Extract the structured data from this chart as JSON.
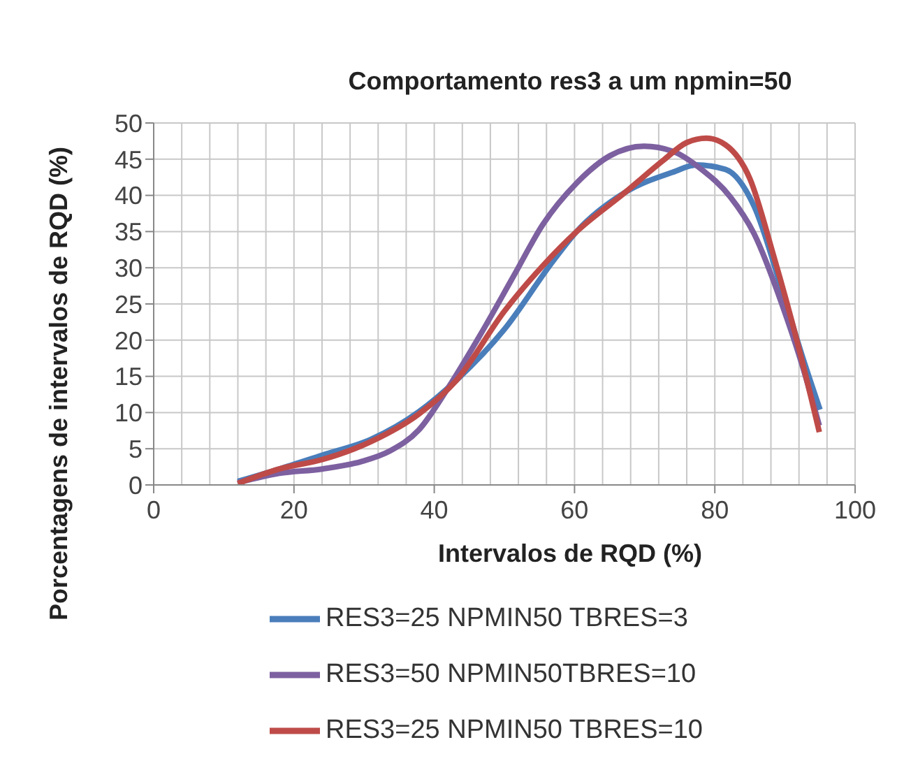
{
  "chart_data": {
    "type": "line",
    "title": "Comportamento res3 a um npmin=50",
    "xlabel": "Intervalos de RQD (%)",
    "ylabel": "Porcentagens de intervalos de RQD (%)",
    "xlim": [
      0,
      100
    ],
    "xticks": [
      0,
      {
        "value": 4,
        "label": null
      },
      {
        "value": 8,
        "label": null
      },
      {
        "value": 12,
        "label": null
      },
      {
        "value": 16,
        "label": null
      },
      20,
      {
        "value": 24,
        "label": null
      },
      {
        "value": 28,
        "label": null
      },
      {
        "value": 32,
        "label": null
      },
      {
        "value": 36,
        "label": null
      },
      40,
      {
        "value": 44,
        "label": null
      },
      {
        "value": 48,
        "label": null
      },
      {
        "value": 52,
        "label": null
      },
      {
        "value": 56,
        "label": null
      },
      60,
      {
        "value": 64,
        "label": null
      },
      {
        "value": 68,
        "label": null
      },
      {
        "value": 72,
        "label": null
      },
      {
        "value": 76,
        "label": null
      },
      80,
      {
        "value": 84,
        "label": null
      },
      {
        "value": 88,
        "label": null
      },
      {
        "value": 92,
        "label": null
      },
      {
        "value": 96,
        "label": null
      },
      100
    ],
    "ylim": [
      0,
      50
    ],
    "yticks": [
      0,
      5,
      10,
      15,
      20,
      25,
      30,
      35,
      40,
      45,
      50
    ],
    "grid": true,
    "legend": "bottom",
    "marker": "none",
    "line_style": "solid",
    "series": [
      {
        "name": "RES3=25 NPMIN50 TBRES=3",
        "color": "#4a7ebb",
        "x": [
          12,
          17.9,
          24,
          31,
          37.8,
          43.2,
          50,
          57,
          60.3,
          67.2,
          74,
          77.4,
          81.5,
          85.6,
          89.7,
          92.5,
          95
        ],
        "values": [
          0.5,
          2.2,
          4.1,
          6.3,
          10.1,
          14.5,
          21.5,
          31,
          35,
          40.4,
          43.2,
          44.2,
          43.6,
          38.5,
          26.5,
          17.7,
          10.4
        ]
      },
      {
        "name": "RES3=50 NPMIN50TBRES=10",
        "color": "#7d60a0",
        "x": [
          12,
          17.9,
          24,
          29.5,
          33.7,
          37.8,
          41.9,
          46.6,
          51.4,
          55.5,
          60.3,
          65.1,
          69.9,
          74,
          78.1,
          82.2,
          85.6,
          89.7,
          92.5,
          94.9
        ],
        "values": [
          0.3,
          1.6,
          2.2,
          3.2,
          4.7,
          7.6,
          13.3,
          20.8,
          29,
          36,
          41.7,
          45.5,
          46.8,
          46.1,
          43.6,
          39.8,
          34.7,
          24.6,
          16.4,
          8.2
        ]
      },
      {
        "name": "RES3=25 NPMIN50 TBRES=10",
        "color": "#be4b48",
        "x": [
          12,
          17.9,
          24,
          31,
          37.8,
          43.2,
          50,
          55.5,
          60.3,
          67.2,
          72.6,
          76,
          78.8,
          81.5,
          85,
          88.4,
          91.8,
          94.9
        ],
        "values": [
          0.2,
          2.2,
          3.5,
          6,
          9.8,
          14.5,
          24,
          30.3,
          35,
          40.4,
          44.8,
          47.3,
          47.9,
          47,
          42.3,
          31.6,
          19.6,
          7.3
        ]
      }
    ]
  }
}
